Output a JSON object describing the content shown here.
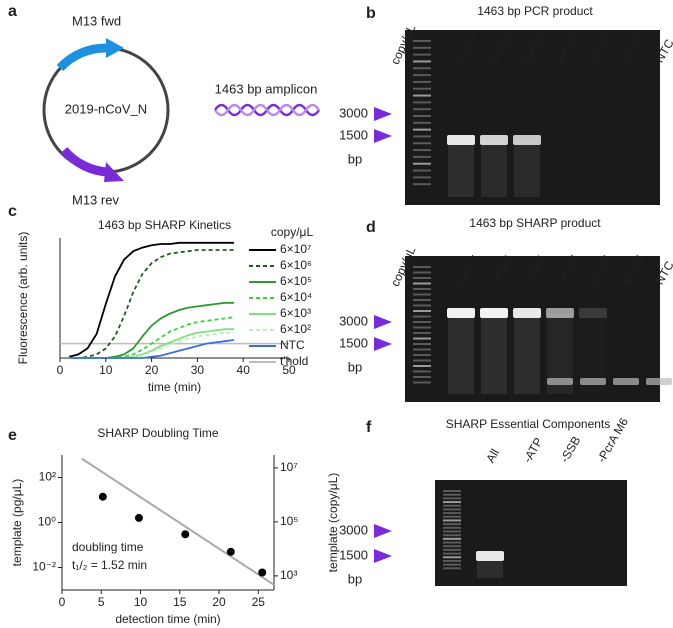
{
  "panel_letters": [
    "a",
    "b",
    "c",
    "d",
    "e",
    "f"
  ],
  "plasmid": {
    "fwd": "M13 fwd",
    "name": "2019-nCoV_N",
    "rev": "M13 rev",
    "amplicon": "1463 bp amplicon"
  },
  "gels": [
    {
      "title": "1463 bp PCR product",
      "lane_header": "copy/μL",
      "lanes": [
        "6×10⁷",
        "6×10⁶",
        "6×10⁵",
        "6×10⁴",
        "6×10³",
        "6×10²",
        "NTC"
      ],
      "markers": [
        "3000",
        "1500"
      ],
      "unit": "bp"
    },
    {
      "title": "1463 bp SHARP product",
      "lane_header": "copy/μL",
      "lanes": [
        "6×10⁷",
        "6×10⁶",
        "6×10⁵",
        "6×10⁴",
        "6×10³",
        "6×10²",
        "NTC"
      ],
      "markers": [
        "3000",
        "1500"
      ],
      "unit": "bp"
    },
    {
      "title": "SHARP Essential Components",
      "lanes": [
        "All",
        "-ATP",
        "-SSB",
        "-PcrA M6"
      ],
      "markers": [
        "3000",
        "1500"
      ],
      "unit": "bp"
    }
  ],
  "chart_data": [
    {
      "type": "line",
      "title": "1463 bp SHARP Kinetics",
      "x_label": "time (min)",
      "y_label": "Fluorescence (arb. units)",
      "legend_title": "copy/μL",
      "x": [
        2,
        4,
        6,
        8,
        10,
        12,
        14,
        16,
        18,
        20,
        22,
        24,
        26,
        28,
        30,
        32,
        34,
        36,
        38
      ],
      "series": [
        {
          "name": "6×10⁷",
          "color": "#000000",
          "dashed": false,
          "values": [
            1,
            3,
            8,
            20,
            45,
            68,
            82,
            89,
            92,
            94,
            95,
            95,
            96,
            96,
            96,
            96,
            96,
            96,
            96
          ]
        },
        {
          "name": "6×10⁶",
          "color": "#1d5e1d",
          "dashed": true,
          "values": [
            0,
            0,
            1,
            3,
            8,
            18,
            35,
            55,
            70,
            79,
            84,
            87,
            88,
            89,
            90,
            90,
            90,
            90,
            90
          ]
        },
        {
          "name": "6×10⁵",
          "color": "#2e9a2e",
          "dashed": false,
          "values": [
            0,
            0,
            0,
            0,
            0,
            1,
            3,
            8,
            18,
            27,
            33,
            37,
            40,
            42,
            43,
            44,
            45,
            46,
            46
          ]
        },
        {
          "name": "6×10⁴",
          "color": "#3ccf3c",
          "dashed": true,
          "values": [
            0,
            0,
            0,
            0,
            0,
            0,
            1,
            3,
            7,
            12,
            17,
            22,
            25,
            28,
            30,
            31,
            32,
            33,
            34
          ]
        },
        {
          "name": "6×10³",
          "color": "#7fe07f",
          "dashed": false,
          "values": [
            0,
            0,
            0,
            0,
            0,
            0,
            0,
            1,
            3,
            6,
            10,
            13,
            16,
            19,
            21,
            22,
            23,
            24,
            24
          ]
        },
        {
          "name": "6×10²",
          "color": "#b8f0b8",
          "dashed": true,
          "values": [
            0,
            0,
            0,
            0,
            0,
            0,
            0,
            1,
            2,
            5,
            8,
            11,
            14,
            16,
            18,
            19,
            20,
            21,
            21
          ]
        },
        {
          "name": "NTC",
          "color": "#3a6fd8",
          "dashed": false,
          "values": [
            0,
            0,
            0,
            0,
            0,
            0,
            0,
            0,
            0,
            1,
            2,
            4,
            6,
            8,
            10,
            12,
            13,
            14,
            15
          ]
        }
      ],
      "threshold": {
        "name": "t'hold",
        "color": "#bbbbbb",
        "value": 12
      },
      "xlim": [
        0,
        50
      ],
      "xticks": [
        0,
        10,
        20,
        30,
        40,
        50
      ],
      "ylim": [
        0,
        100
      ]
    },
    {
      "type": "scatter",
      "title": "SHARP Doubling Time",
      "x_label": "detection time (min)",
      "y_label": "template (pg/μL)",
      "y2_label": "template (copy/μL)",
      "annotations": [
        "doubling time",
        "t₁/₂ = 1.52 min"
      ],
      "points": {
        "x": [
          5.2,
          9.8,
          15.7,
          21.5,
          25.5
        ],
        "values": [
          14,
          1.6,
          0.3,
          0.05,
          0.006
        ],
        "color": "#000000"
      },
      "fit": {
        "x": [
          2.5,
          27
        ],
        "values": [
          700,
          0.0017
        ],
        "color": "#aaaaaa"
      },
      "xlim": [
        0,
        27
      ],
      "xticks": [
        0,
        5,
        10,
        15,
        20,
        25
      ],
      "ylim": [
        0.001,
        1000
      ],
      "yticks": [
        {
          "value": 0.01,
          "label": "10⁻²"
        },
        {
          "value": 1,
          "label": "10⁰"
        },
        {
          "value": 100,
          "label": "10²"
        }
      ],
      "y2lim": [
        300,
        30000000
      ],
      "y2ticks": [
        {
          "value": 1000,
          "label": "10³"
        },
        {
          "value": 100000,
          "label": "10⁵"
        },
        {
          "value": 10000000,
          "label": "10⁷"
        }
      ],
      "log_y": true,
      "log_y2": true
    }
  ]
}
